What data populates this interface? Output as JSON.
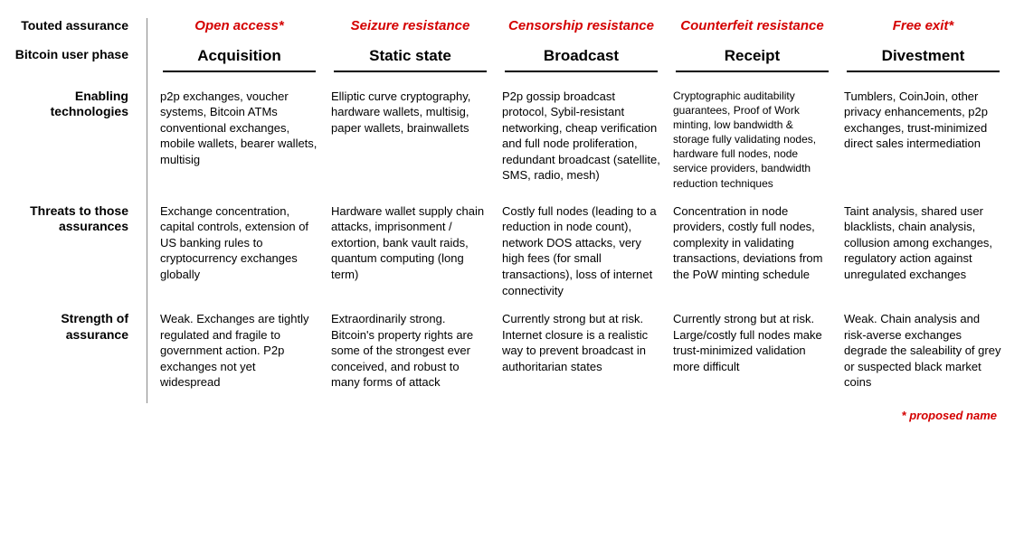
{
  "colors": {
    "accent_red": "#d40000",
    "text": "#000000",
    "divider": "#888888",
    "background": "#ffffff"
  },
  "row_labels": {
    "touted": "Touted assurance",
    "phase": "Bitcoin user phase",
    "enabling": "Enabling technologies",
    "threats": "Threats to those assurances",
    "strength": "Strength of assurance"
  },
  "columns": [
    {
      "assurance": "Open access*",
      "phase": "Acquisition",
      "enabling": "p2p exchanges, voucher systems, Bitcoin ATMs conventional exchanges, mobile wallets, bearer wallets, multisig",
      "threats": "Exchange concentration, capital controls, extension of US banking rules to cryptocurrency exchanges globally",
      "strength": "Weak. Exchanges are tightly regulated and fragile to government action. P2p exchanges not yet widespread"
    },
    {
      "assurance": "Seizure resistance",
      "phase": "Static state",
      "enabling": "Elliptic curve cryptography, hardware wallets, multisig, paper wallets, brainwallets",
      "threats": "Hardware wallet supply chain attacks, imprisonment / extortion, bank vault raids, quantum computing (long term)",
      "strength": "Extraordinarily strong. Bitcoin's property rights are some of the strongest ever conceived, and robust to many forms of attack"
    },
    {
      "assurance": "Censorship resistance",
      "phase": "Broadcast",
      "enabling": "P2p gossip broadcast protocol, Sybil-resistant networking, cheap verification and full node proliferation, redundant broadcast (satellite, SMS, radio, mesh)",
      "threats": "Costly full nodes (leading to a reduction in node count), network DOS attacks, very high fees (for small transactions), loss of internet connectivity",
      "strength": "Currently strong but at risk. Internet closure is a realistic way to prevent broadcast in authoritarian states"
    },
    {
      "assurance": "Counterfeit resistance",
      "phase": "Receipt",
      "enabling": "Cryptographic auditability guarantees, Proof of Work minting, low bandwidth & storage fully validating nodes, hardware full nodes, node service providers, bandwidth reduction techniques",
      "threats": "Concentration in node providers, costly full nodes, complexity in validating transactions, deviations from the PoW minting schedule",
      "strength": "Currently strong but at risk. Large/costly full nodes make trust-minimized validation more difficult"
    },
    {
      "assurance": "Free exit*",
      "phase": "Divestment",
      "enabling": "Tumblers, CoinJoin, other privacy enhancements, p2p exchanges, trust-minimized direct sales intermediation",
      "threats": "Taint analysis, shared user blacklists, chain analysis, collusion among exchanges, regulatory action against unregulated exchanges",
      "strength": "Weak. Chain analysis and risk-averse exchanges degrade the saleability of grey or suspected black market coins"
    }
  ],
  "footnote": "* proposed name"
}
